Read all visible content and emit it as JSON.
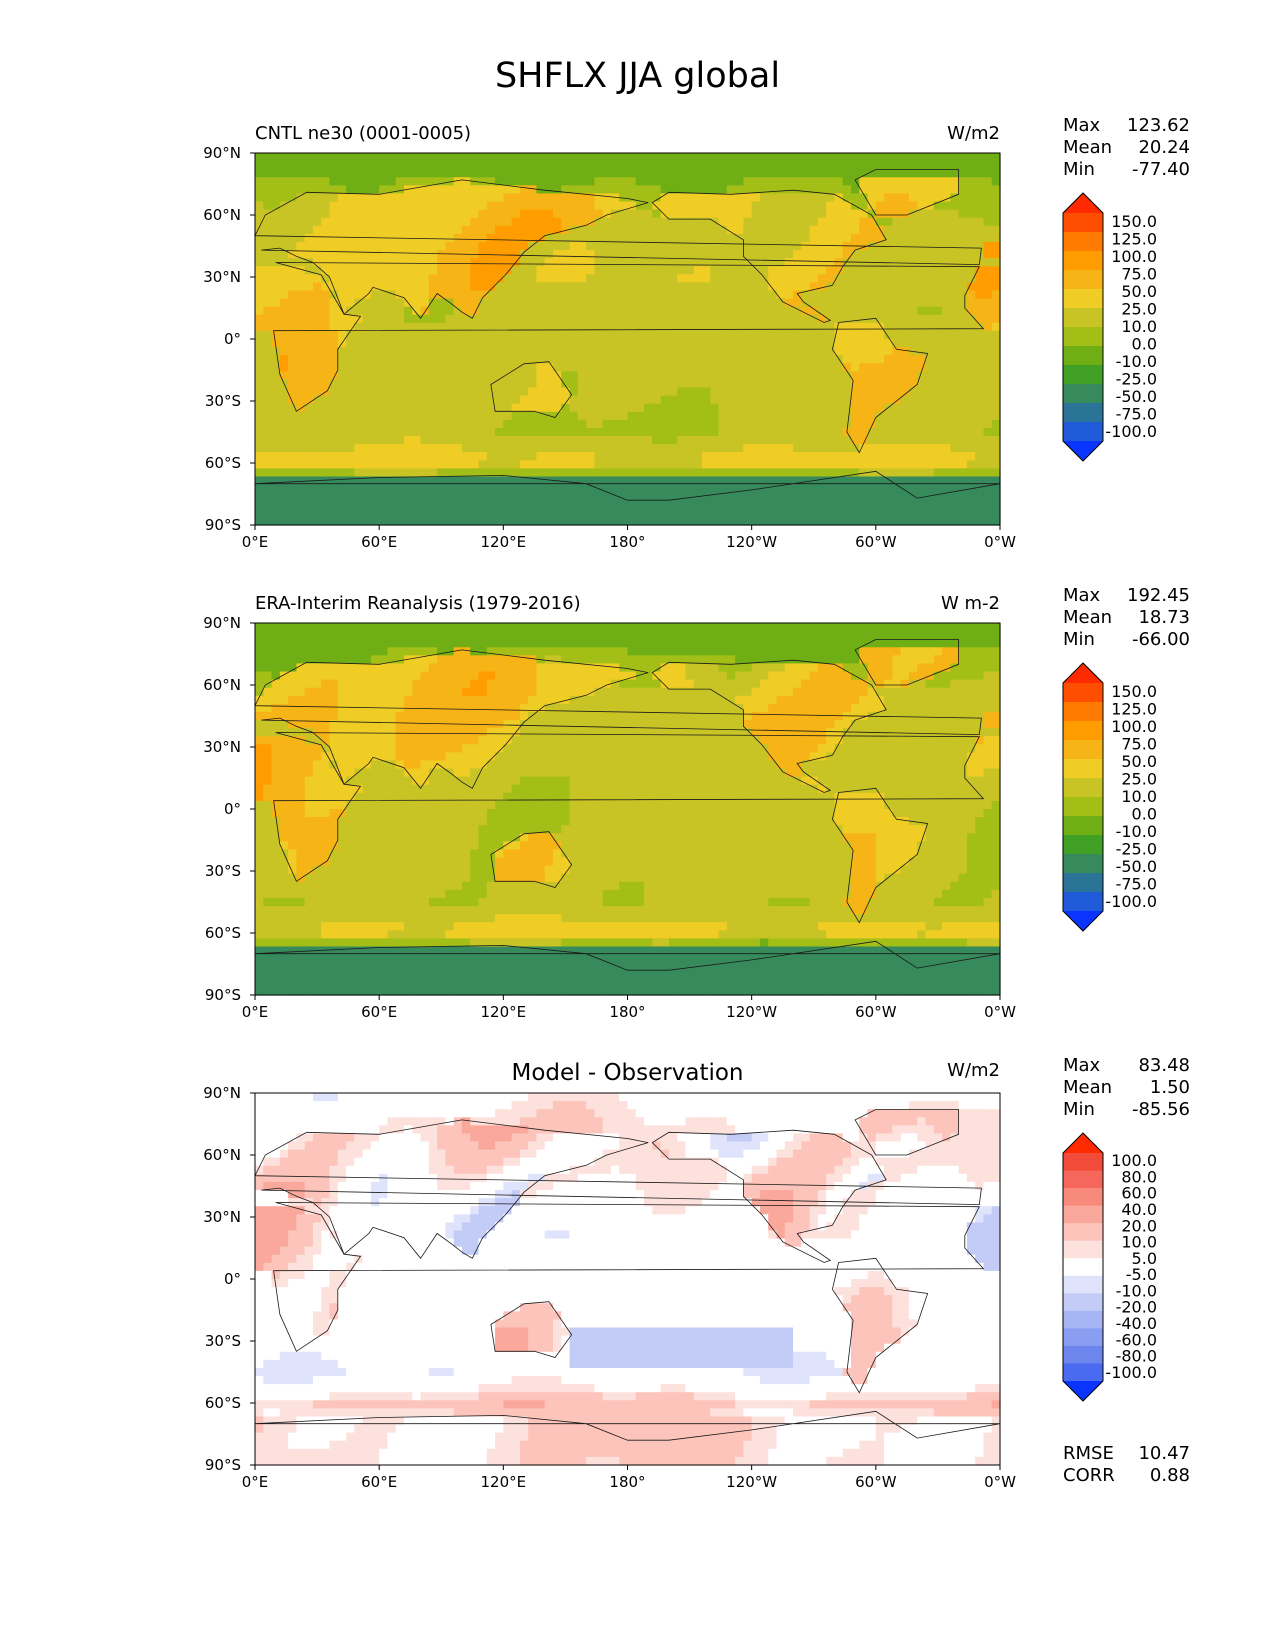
{
  "title": "SHFLX JJA global",
  "chart_data": [
    {
      "type": "heatmap",
      "title": "CNTL ne30 (0001-0005)",
      "units": "W/m2",
      "lat_ticks": [
        "90°N",
        "60°N",
        "30°N",
        "0°",
        "30°S",
        "60°S",
        "90°S"
      ],
      "lon_ticks": [
        "0°E",
        "60°E",
        "120°E",
        "180°",
        "120°W",
        "60°W",
        "0°W"
      ],
      "xlim": [
        0,
        360
      ],
      "ylim": [
        -90,
        90
      ],
      "stats": [
        {
          "label": "Max",
          "value": "123.62"
        },
        {
          "label": "Mean",
          "value": "20.24"
        },
        {
          "label": "Min",
          "value": "-77.40"
        }
      ],
      "colorbar": {
        "labels": [
          "150.0",
          "125.0",
          "100.0",
          "75.0",
          "50.0",
          "25.0",
          "10.0",
          "0.0",
          "-10.0",
          "-25.0",
          "-50.0",
          "-75.0",
          "-100.0"
        ],
        "colors": [
          "#ff2a00",
          "#ff4e00",
          "#ff7b00",
          "#ff9d00",
          "#f7b416",
          "#f0cd24",
          "#c8c425",
          "#a3bf17",
          "#6fae14",
          "#3fa025",
          "#378a5b",
          "#2a7497",
          "#1f5bd8",
          "#0a34ff"
        ]
      },
      "description_zones": "zonal bands estimated",
      "zonal_mean_by_lat": {
        "lat": [
          90,
          75,
          60,
          45,
          30,
          15,
          0,
          -15,
          -30,
          -45,
          -55,
          -60,
          -70,
          -80,
          -90
        ],
        "value": [
          -5,
          0,
          10,
          18,
          20,
          15,
          15,
          15,
          15,
          12,
          25,
          30,
          -20,
          -40,
          -40
        ]
      }
    },
    {
      "type": "heatmap",
      "title": "ERA-Interim Reanalysis (1979-2016)",
      "units": "W m-2",
      "lat_ticks": [
        "90°N",
        "60°N",
        "30°N",
        "0°",
        "30°S",
        "60°S",
        "90°S"
      ],
      "lon_ticks": [
        "0°E",
        "60°E",
        "120°E",
        "180°",
        "120°W",
        "60°W",
        "0°W"
      ],
      "xlim": [
        0,
        360
      ],
      "ylim": [
        -90,
        90
      ],
      "stats": [
        {
          "label": "Max",
          "value": "192.45"
        },
        {
          "label": "Mean",
          "value": "18.73"
        },
        {
          "label": "Min",
          "value": "-66.00"
        }
      ],
      "colorbar": {
        "labels": [
          "150.0",
          "125.0",
          "100.0",
          "75.0",
          "50.0",
          "25.0",
          "10.0",
          "0.0",
          "-10.0",
          "-25.0",
          "-50.0",
          "-75.0",
          "-100.0"
        ],
        "colors": [
          "#ff2a00",
          "#ff4e00",
          "#ff7b00",
          "#ff9d00",
          "#f7b416",
          "#f0cd24",
          "#c8c425",
          "#a3bf17",
          "#6fae14",
          "#3fa025",
          "#378a5b",
          "#2a7497",
          "#1f5bd8",
          "#0a34ff"
        ]
      },
      "zonal_mean_by_lat": {
        "lat": [
          90,
          75,
          60,
          45,
          30,
          15,
          0,
          -15,
          -30,
          -45,
          -55,
          -60,
          -70,
          -80,
          -90
        ],
        "value": [
          -5,
          0,
          10,
          18,
          20,
          15,
          15,
          15,
          15,
          12,
          25,
          30,
          -20,
          -40,
          -40
        ]
      }
    },
    {
      "type": "heatmap",
      "title": "Model - Observation",
      "units": "W/m2",
      "lat_ticks": [
        "90°N",
        "60°N",
        "30°N",
        "0°",
        "30°S",
        "60°S",
        "90°S"
      ],
      "lon_ticks": [
        "0°E",
        "60°E",
        "120°E",
        "180°",
        "120°W",
        "60°W",
        "0°W"
      ],
      "xlim": [
        0,
        360
      ],
      "ylim": [
        -90,
        90
      ],
      "stats": [
        {
          "label": "Max",
          "value": "83.48"
        },
        {
          "label": "Mean",
          "value": "1.50"
        },
        {
          "label": "Min",
          "value": "-85.56"
        }
      ],
      "extra_stats": [
        {
          "label": "RMSE",
          "value": "10.47"
        },
        {
          "label": "CORR",
          "value": "0.88"
        }
      ],
      "colorbar": {
        "labels": [
          "100.0",
          "80.0",
          "60.0",
          "40.0",
          "20.0",
          "10.0",
          "5.0",
          "-5.0",
          "-10.0",
          "-20.0",
          "-40.0",
          "-60.0",
          "-80.0",
          "-100.0"
        ],
        "colors": [
          "#ff2a00",
          "#f34b3a",
          "#f5675a",
          "#f88a7c",
          "#fba89c",
          "#fcc4bb",
          "#fde1dc",
          "#ffffff",
          "#dfe3fb",
          "#c3ccf7",
          "#a6b5f4",
          "#8a9ef1",
          "#6d86ee",
          "#4a6af0",
          "#0a34ff"
        ]
      },
      "zonal_mean_by_lat": {
        "lat": [
          90,
          75,
          60,
          45,
          30,
          15,
          0,
          -15,
          -30,
          -45,
          -55,
          -60,
          -70,
          -80,
          -90
        ],
        "value": [
          2,
          10,
          12,
          8,
          5,
          0,
          0,
          3,
          0,
          -5,
          8,
          25,
          10,
          15,
          12
        ]
      }
    }
  ]
}
